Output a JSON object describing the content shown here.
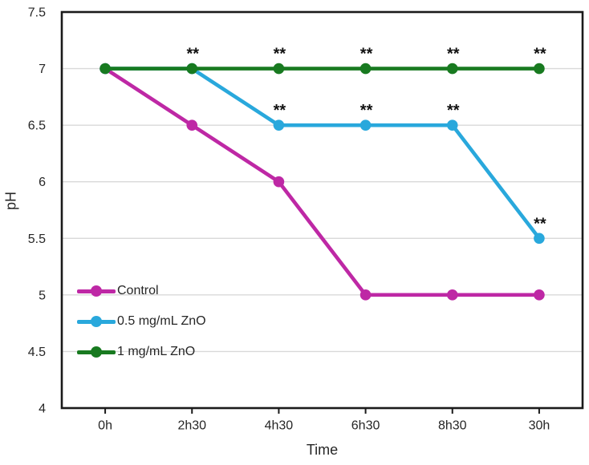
{
  "chart_data": {
    "type": "line",
    "title": "",
    "xlabel": "Time",
    "ylabel": "pH",
    "categories": [
      "0h",
      "2h30",
      "4h30",
      "6h30",
      "8h30",
      "30h"
    ],
    "ylim": [
      4,
      7.5
    ],
    "y_ticks": [
      "4",
      "4.5",
      "5",
      "5.5",
      "6",
      "6.5",
      "7",
      "7.5"
    ],
    "y_gridlines": [
      4.5,
      5,
      5.5,
      6,
      6.5,
      7
    ],
    "grid": "horizontal",
    "legend_position": "inside-left",
    "significance_symbol": "**",
    "series": [
      {
        "name": "Control",
        "color": "#be28a5",
        "values": [
          7,
          6.5,
          6,
          5,
          5,
          5
        ],
        "significance": [
          "",
          "",
          "",
          "",
          "",
          ""
        ]
      },
      {
        "name": "0.5 mg/mL ZnO",
        "color": "#29a8dc",
        "values": [
          7,
          7,
          6.5,
          6.5,
          6.5,
          5.5
        ],
        "significance": [
          "",
          "",
          "**",
          "**",
          "**",
          "**"
        ]
      },
      {
        "name": "1 mg/mL ZnO",
        "color": "#187a20",
        "values": [
          7,
          7,
          7,
          7,
          7,
          7
        ],
        "significance": [
          "",
          "**",
          "**",
          "**",
          "**",
          "**"
        ]
      }
    ],
    "colors": {
      "axis": "#1a1a1a",
      "grid": "#d9d9d9",
      "text": "#262626",
      "significance": "#111111"
    }
  }
}
